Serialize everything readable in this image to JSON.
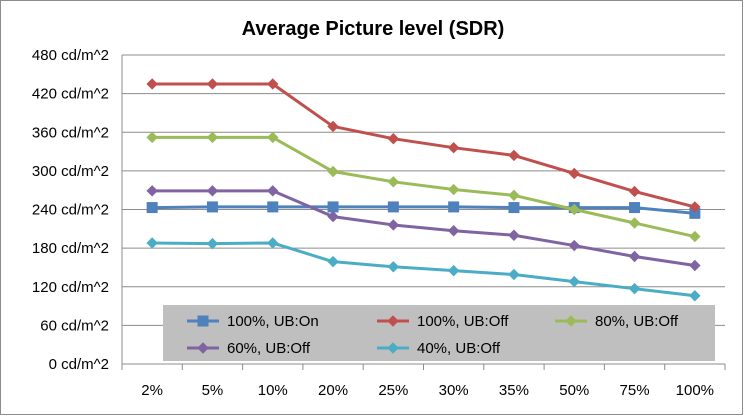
{
  "chart_data": {
    "type": "line",
    "title": "Average Picture level (SDR)",
    "xlabel": "",
    "ylabel": "",
    "categories": [
      "2%",
      "5%",
      "10%",
      "20%",
      "25%",
      "30%",
      "35%",
      "50%",
      "75%",
      "100%"
    ],
    "y_tick_labels": [
      "0 cd/m^2",
      "60 cd/m^2",
      "120 cd/m^2",
      "180 cd/m^2",
      "240 cd/m^2",
      "300 cd/m^2",
      "360 cd/m^2",
      "420 cd/m^2",
      "480 cd/m^2"
    ],
    "ylim": [
      0,
      480
    ],
    "y_step": 60,
    "grid": true,
    "legend_position": "bottom-inside",
    "series": [
      {
        "name": "100%, UB:On",
        "color": "#4f81bd",
        "marker": "square",
        "values": [
          243,
          244,
          244,
          244,
          244,
          244,
          243,
          243,
          243,
          234
        ]
      },
      {
        "name": "100%, UB:Off",
        "color": "#c0504d",
        "marker": "diamond",
        "values": [
          435,
          435,
          435,
          369,
          350,
          336,
          324,
          296,
          268,
          244
        ]
      },
      {
        "name": "80%, UB:Off",
        "color": "#9bbb59",
        "marker": "diamond",
        "values": [
          352,
          352,
          352,
          299,
          283,
          271,
          262,
          240,
          219,
          198
        ]
      },
      {
        "name": "60%, UB:Off",
        "color": "#8064a2",
        "marker": "diamond",
        "values": [
          269,
          269,
          269,
          229,
          216,
          207,
          200,
          184,
          167,
          153
        ]
      },
      {
        "name": "40%, UB:Off",
        "color": "#4bacc6",
        "marker": "diamond",
        "values": [
          188,
          187,
          188,
          159,
          151,
          145,
          139,
          128,
          117,
          106
        ]
      }
    ]
  }
}
